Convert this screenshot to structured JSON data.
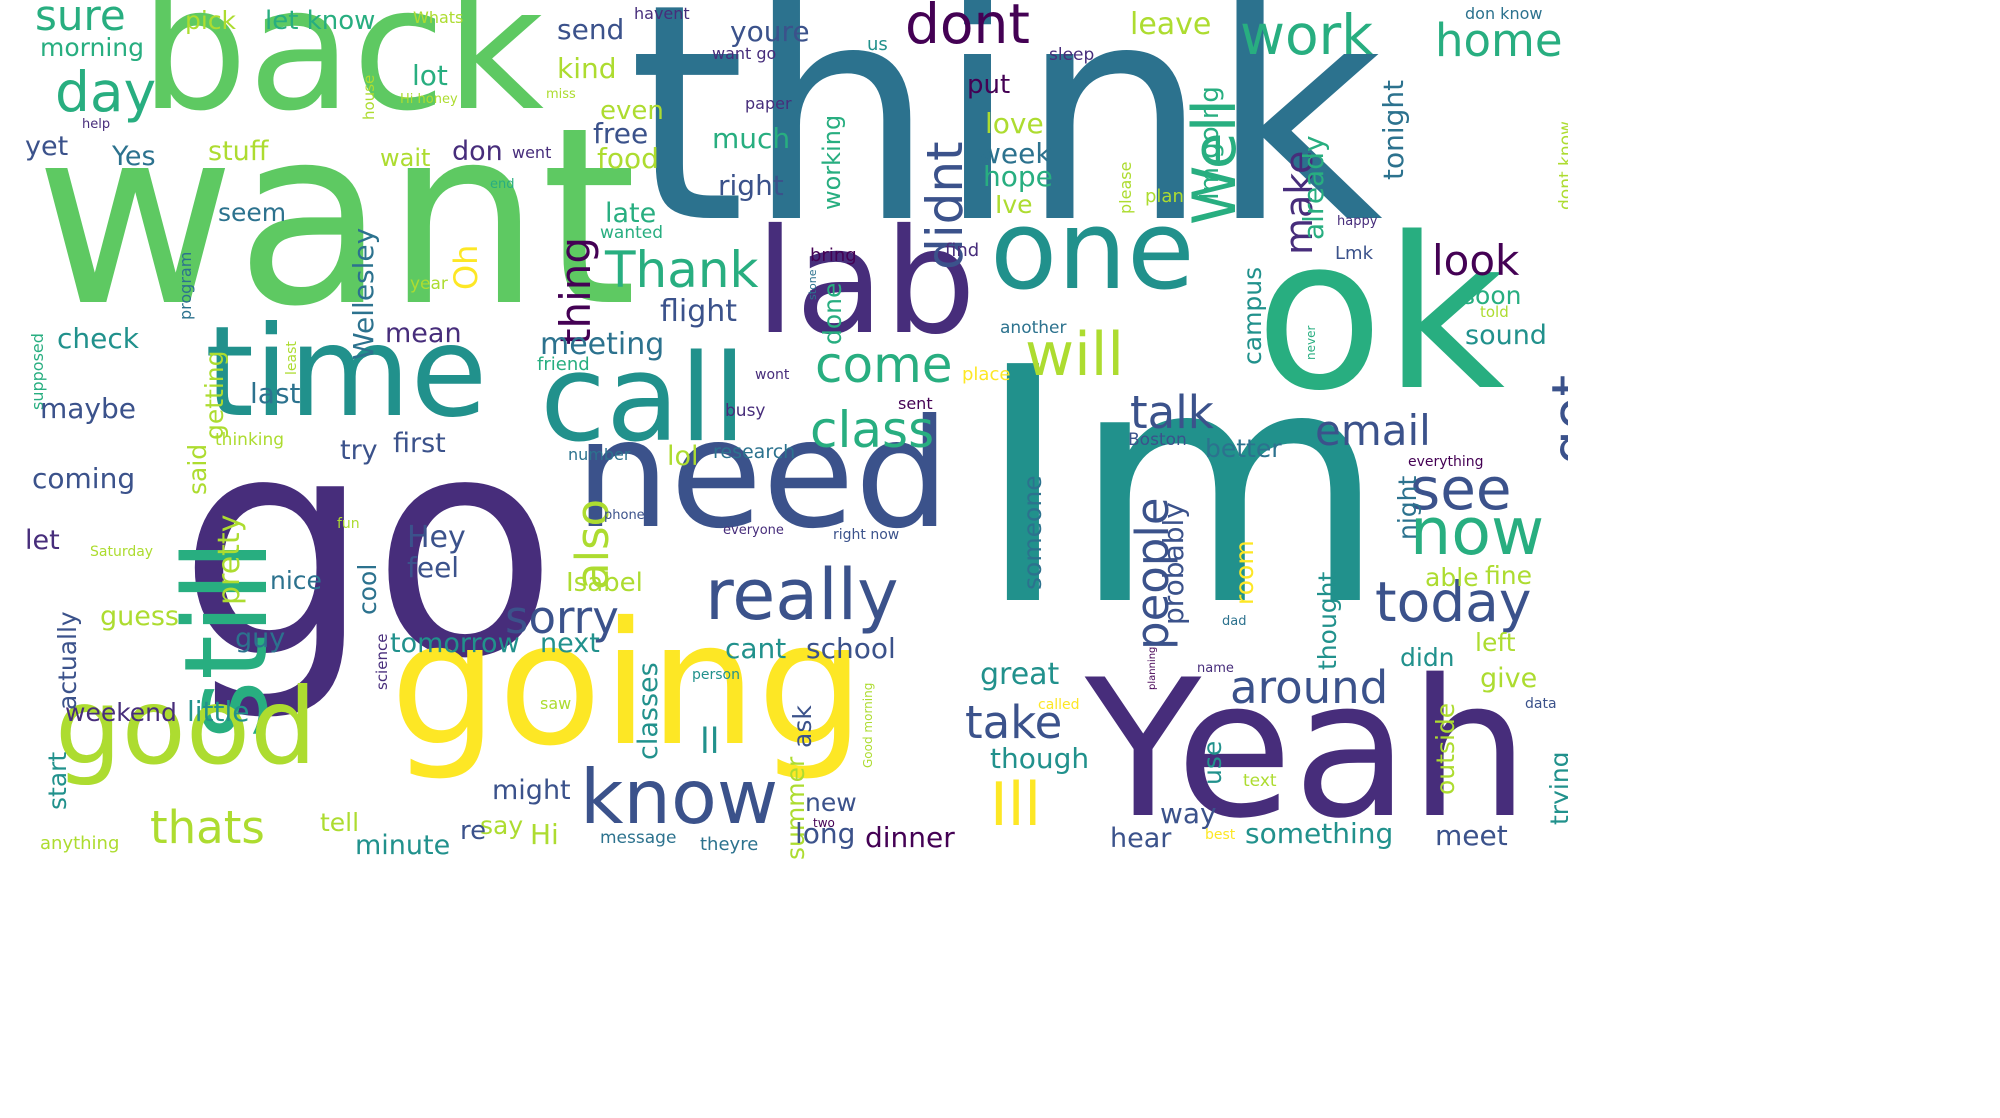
{
  "colors": {
    "purple": "#440154",
    "indigo": "#472d7b",
    "blue": "#3b528b",
    "slate": "#2c728e",
    "teal": "#21918c",
    "sea": "#28ae80",
    "green": "#5ec962",
    "lime": "#addc30",
    "yellow": "#fde725"
  },
  "words": [
    {
      "text": "think"
    },
    {
      "text": "want"
    },
    {
      "text": "go"
    },
    {
      "text": "Im"
    },
    {
      "text": "back"
    },
    {
      "text": "going"
    },
    {
      "text": "need"
    },
    {
      "text": "ok"
    },
    {
      "text": "Yeah"
    },
    {
      "text": "lab"
    },
    {
      "text": "one"
    },
    {
      "text": "time"
    },
    {
      "text": "call"
    },
    {
      "text": "still"
    },
    {
      "text": "good"
    },
    {
      "text": "really"
    },
    {
      "text": "know"
    },
    {
      "text": "dont"
    },
    {
      "text": "work"
    },
    {
      "text": "day"
    },
    {
      "text": "sure"
    },
    {
      "text": "home"
    },
    {
      "text": "Well"
    },
    {
      "text": "will"
    },
    {
      "text": "didnt"
    },
    {
      "text": "Thank"
    },
    {
      "text": "come"
    },
    {
      "text": "class"
    },
    {
      "text": "got"
    },
    {
      "text": "see"
    },
    {
      "text": "now"
    },
    {
      "text": "today"
    },
    {
      "text": "sorry"
    },
    {
      "text": "also"
    },
    {
      "text": "thats"
    },
    {
      "text": "Ill"
    },
    {
      "text": "around"
    },
    {
      "text": "email"
    },
    {
      "text": "talk"
    },
    {
      "text": "people"
    },
    {
      "text": "take"
    },
    {
      "text": "look"
    },
    {
      "text": "thing"
    },
    {
      "text": "Oh"
    },
    {
      "text": "make"
    },
    {
      "text": "morning"
    },
    {
      "text": "pick"
    },
    {
      "text": "let know"
    },
    {
      "text": "Whats"
    },
    {
      "text": "havent"
    },
    {
      "text": "send"
    },
    {
      "text": "youre"
    },
    {
      "text": "lot"
    },
    {
      "text": "kind"
    },
    {
      "text": "leave"
    },
    {
      "text": "don know"
    },
    {
      "text": "want go"
    },
    {
      "text": "sleep"
    },
    {
      "text": "us"
    },
    {
      "text": "Hi honey"
    },
    {
      "text": "miss"
    },
    {
      "text": "house"
    },
    {
      "text": "paper"
    },
    {
      "text": "help"
    },
    {
      "text": "put"
    },
    {
      "text": "Im going"
    },
    {
      "text": "tonight"
    },
    {
      "text": "love"
    },
    {
      "text": "week"
    },
    {
      "text": "hope"
    },
    {
      "text": "Ive"
    },
    {
      "text": "yet"
    },
    {
      "text": "Yes"
    },
    {
      "text": "stuff"
    },
    {
      "text": "wait"
    },
    {
      "text": "don"
    },
    {
      "text": "went"
    },
    {
      "text": "free"
    },
    {
      "text": "food"
    },
    {
      "text": "much"
    },
    {
      "text": "even"
    },
    {
      "text": "working"
    },
    {
      "text": "right"
    },
    {
      "text": "already"
    },
    {
      "text": "please"
    },
    {
      "text": "plan"
    },
    {
      "text": "dont know"
    },
    {
      "text": "end"
    },
    {
      "text": "seem"
    },
    {
      "text": "late"
    },
    {
      "text": "wanted"
    },
    {
      "text": "happy"
    },
    {
      "text": "bring"
    },
    {
      "text": "find"
    },
    {
      "text": "Lmk"
    },
    {
      "text": "year"
    },
    {
      "text": "stone"
    },
    {
      "text": "flight"
    },
    {
      "text": "done"
    },
    {
      "text": "soon"
    },
    {
      "text": "told"
    },
    {
      "text": "program"
    },
    {
      "text": "check"
    },
    {
      "text": "supposed"
    },
    {
      "text": "getting"
    },
    {
      "text": "least"
    },
    {
      "text": "Wellesley"
    },
    {
      "text": "mean"
    },
    {
      "text": "meeting"
    },
    {
      "text": "campus"
    },
    {
      "text": "another"
    },
    {
      "text": "sound"
    },
    {
      "text": "never"
    },
    {
      "text": "last"
    },
    {
      "text": "friend"
    },
    {
      "text": "wont"
    },
    {
      "text": "place"
    },
    {
      "text": "maybe"
    },
    {
      "text": "busy"
    },
    {
      "text": "sent"
    },
    {
      "text": "thinking"
    },
    {
      "text": "said"
    },
    {
      "text": "try"
    },
    {
      "text": "first"
    },
    {
      "text": "lol"
    },
    {
      "text": "research"
    },
    {
      "text": "Boston"
    },
    {
      "text": "better"
    },
    {
      "text": "everything"
    },
    {
      "text": "coming"
    },
    {
      "text": "number"
    },
    {
      "text": "pretty"
    },
    {
      "text": "someone"
    },
    {
      "text": "probably"
    },
    {
      "text": "night"
    },
    {
      "text": "phone"
    },
    {
      "text": "Hey"
    },
    {
      "text": "feel"
    },
    {
      "text": "fun"
    },
    {
      "text": "everyone"
    },
    {
      "text": "right now"
    },
    {
      "text": "let"
    },
    {
      "text": "Saturday"
    },
    {
      "text": "actually"
    },
    {
      "text": "cool"
    },
    {
      "text": "Isabel"
    },
    {
      "text": "room"
    },
    {
      "text": "thought"
    },
    {
      "text": "able"
    },
    {
      "text": "fine"
    },
    {
      "text": "guess"
    },
    {
      "text": "nice"
    },
    {
      "text": "science"
    },
    {
      "text": "tomorrow"
    },
    {
      "text": "next"
    },
    {
      "text": "cant"
    },
    {
      "text": "school"
    },
    {
      "text": "dad"
    },
    {
      "text": "didn"
    },
    {
      "text": "left"
    },
    {
      "text": "guy"
    },
    {
      "text": "planning"
    },
    {
      "text": "great"
    },
    {
      "text": "person"
    },
    {
      "text": "name"
    },
    {
      "text": "give"
    },
    {
      "text": "weekend"
    },
    {
      "text": "little"
    },
    {
      "text": "classes"
    },
    {
      "text": "called"
    },
    {
      "text": "data"
    },
    {
      "text": "saw"
    },
    {
      "text": "Good morning"
    },
    {
      "text": "ll"
    },
    {
      "text": "ask"
    },
    {
      "text": "though"
    },
    {
      "text": "outside"
    },
    {
      "text": "start"
    },
    {
      "text": "might"
    },
    {
      "text": "summer"
    },
    {
      "text": "new"
    },
    {
      "text": "use"
    },
    {
      "text": "text"
    },
    {
      "text": "way"
    },
    {
      "text": "trying"
    },
    {
      "text": "tell"
    },
    {
      "text": "say"
    },
    {
      "text": "re"
    },
    {
      "text": "two"
    },
    {
      "text": "long"
    },
    {
      "text": "Hi"
    },
    {
      "text": "minute"
    },
    {
      "text": "dinner"
    },
    {
      "text": "hear"
    },
    {
      "text": "best"
    },
    {
      "text": "something"
    },
    {
      "text": "meet"
    },
    {
      "text": "anything"
    },
    {
      "text": "message"
    },
    {
      "text": "theyre"
    }
  ]
}
